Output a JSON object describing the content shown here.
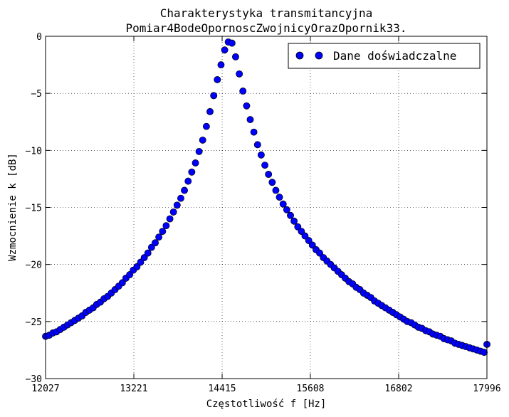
{
  "chart_data": {
    "type": "scatter",
    "title": "Charakterystyka transmitancyjna",
    "subtitle": "Pomiar4BodeOpornoscZwojnicyOrazOpornik33.",
    "xlabel": "Częstotliwość f [Hz]",
    "ylabel": "Wzmocnienie k [dB]",
    "xlim": [
      12027,
      17996
    ],
    "ylim": [
      -30,
      0
    ],
    "xticks": [
      12027,
      13221,
      14415,
      15608,
      16802,
      17996
    ],
    "xtick_labels": [
      "12027",
      "13221",
      "14415",
      "15608",
      "16802",
      "17996"
    ],
    "yticks": [
      0,
      -5,
      -10,
      -15,
      -20,
      -25,
      -30
    ],
    "ytick_labels": [
      "0",
      "−5",
      "−10",
      "−15",
      "−20",
      "−25",
      "−30"
    ],
    "grid": true,
    "legend": {
      "position": "top-right",
      "entries": [
        "Dane doświadczalne"
      ]
    },
    "marker_color": "#0000ff",
    "marker_edge_color": "#000000",
    "series": [
      {
        "name": "Dane doświadczalne",
        "x": [
          12027,
          12076,
          12126,
          12175,
          12225,
          12274,
          12324,
          12373,
          12422,
          12472,
          12521,
          12571,
          12620,
          12670,
          12719,
          12768,
          12818,
          12867,
          12917,
          12966,
          13016,
          13065,
          13114,
          13164,
          13213,
          13263,
          13312,
          13362,
          13411,
          13460,
          13510,
          13559,
          13609,
          13658,
          13708,
          13757,
          13806,
          13856,
          13905,
          13955,
          14004,
          14054,
          14103,
          14152,
          14202,
          14251,
          14301,
          14350,
          14400,
          14449,
          14498,
          14548,
          14597,
          14647,
          14696,
          14746,
          14795,
          14844,
          14894,
          14943,
          14993,
          15042,
          15092,
          15141,
          15190,
          15240,
          15289,
          15339,
          15388,
          15438,
          15487,
          15536,
          15586,
          15635,
          15685,
          15734,
          15784,
          15833,
          15882,
          15932,
          15981,
          16031,
          16080,
          16130,
          16179,
          16228,
          16278,
          16327,
          16377,
          16426,
          16476,
          16525,
          16574,
          16624,
          16673,
          16723,
          16772,
          16822,
          16871,
          16920,
          16970,
          17019,
          17069,
          17118,
          17168,
          17217,
          17266,
          17316,
          17365,
          17415,
          17464,
          17514,
          17563,
          17612,
          17662,
          17711,
          17761,
          17810,
          17860,
          17909,
          17958,
          17996
        ],
        "y": [
          -26.3,
          -26.2,
          -26.0,
          -25.9,
          -25.7,
          -25.5,
          -25.3,
          -25.1,
          -24.9,
          -24.7,
          -24.5,
          -24.2,
          -24.0,
          -23.8,
          -23.5,
          -23.3,
          -23.0,
          -22.8,
          -22.5,
          -22.2,
          -21.9,
          -21.6,
          -21.2,
          -20.9,
          -20.5,
          -20.2,
          -19.8,
          -19.4,
          -19.0,
          -18.5,
          -18.1,
          -17.6,
          -17.1,
          -16.6,
          -16.0,
          -15.4,
          -14.8,
          -14.2,
          -13.5,
          -12.7,
          -11.9,
          -11.1,
          -10.1,
          -9.1,
          -7.9,
          -6.6,
          -5.2,
          -3.8,
          -2.5,
          -1.2,
          -0.5,
          -0.6,
          -1.8,
          -3.3,
          -4.8,
          -6.1,
          -7.3,
          -8.4,
          -9.5,
          -10.4,
          -11.3,
          -12.1,
          -12.8,
          -13.5,
          -14.1,
          -14.7,
          -15.2,
          -15.7,
          -16.2,
          -16.7,
          -17.1,
          -17.5,
          -17.9,
          -18.3,
          -18.7,
          -19.0,
          -19.4,
          -19.7,
          -20.0,
          -20.3,
          -20.6,
          -20.9,
          -21.2,
          -21.5,
          -21.7,
          -22.0,
          -22.2,
          -22.5,
          -22.7,
          -22.9,
          -23.2,
          -23.4,
          -23.6,
          -23.8,
          -24.0,
          -24.2,
          -24.4,
          -24.6,
          -24.8,
          -25.0,
          -25.1,
          -25.3,
          -25.5,
          -25.6,
          -25.8,
          -25.9,
          -26.1,
          -26.2,
          -26.3,
          -26.5,
          -26.6,
          -26.7,
          -26.9,
          -27.0,
          -27.1,
          -27.2,
          -27.3,
          -27.4,
          -27.5,
          -27.6,
          -27.7,
          -27.0
        ]
      }
    ]
  }
}
